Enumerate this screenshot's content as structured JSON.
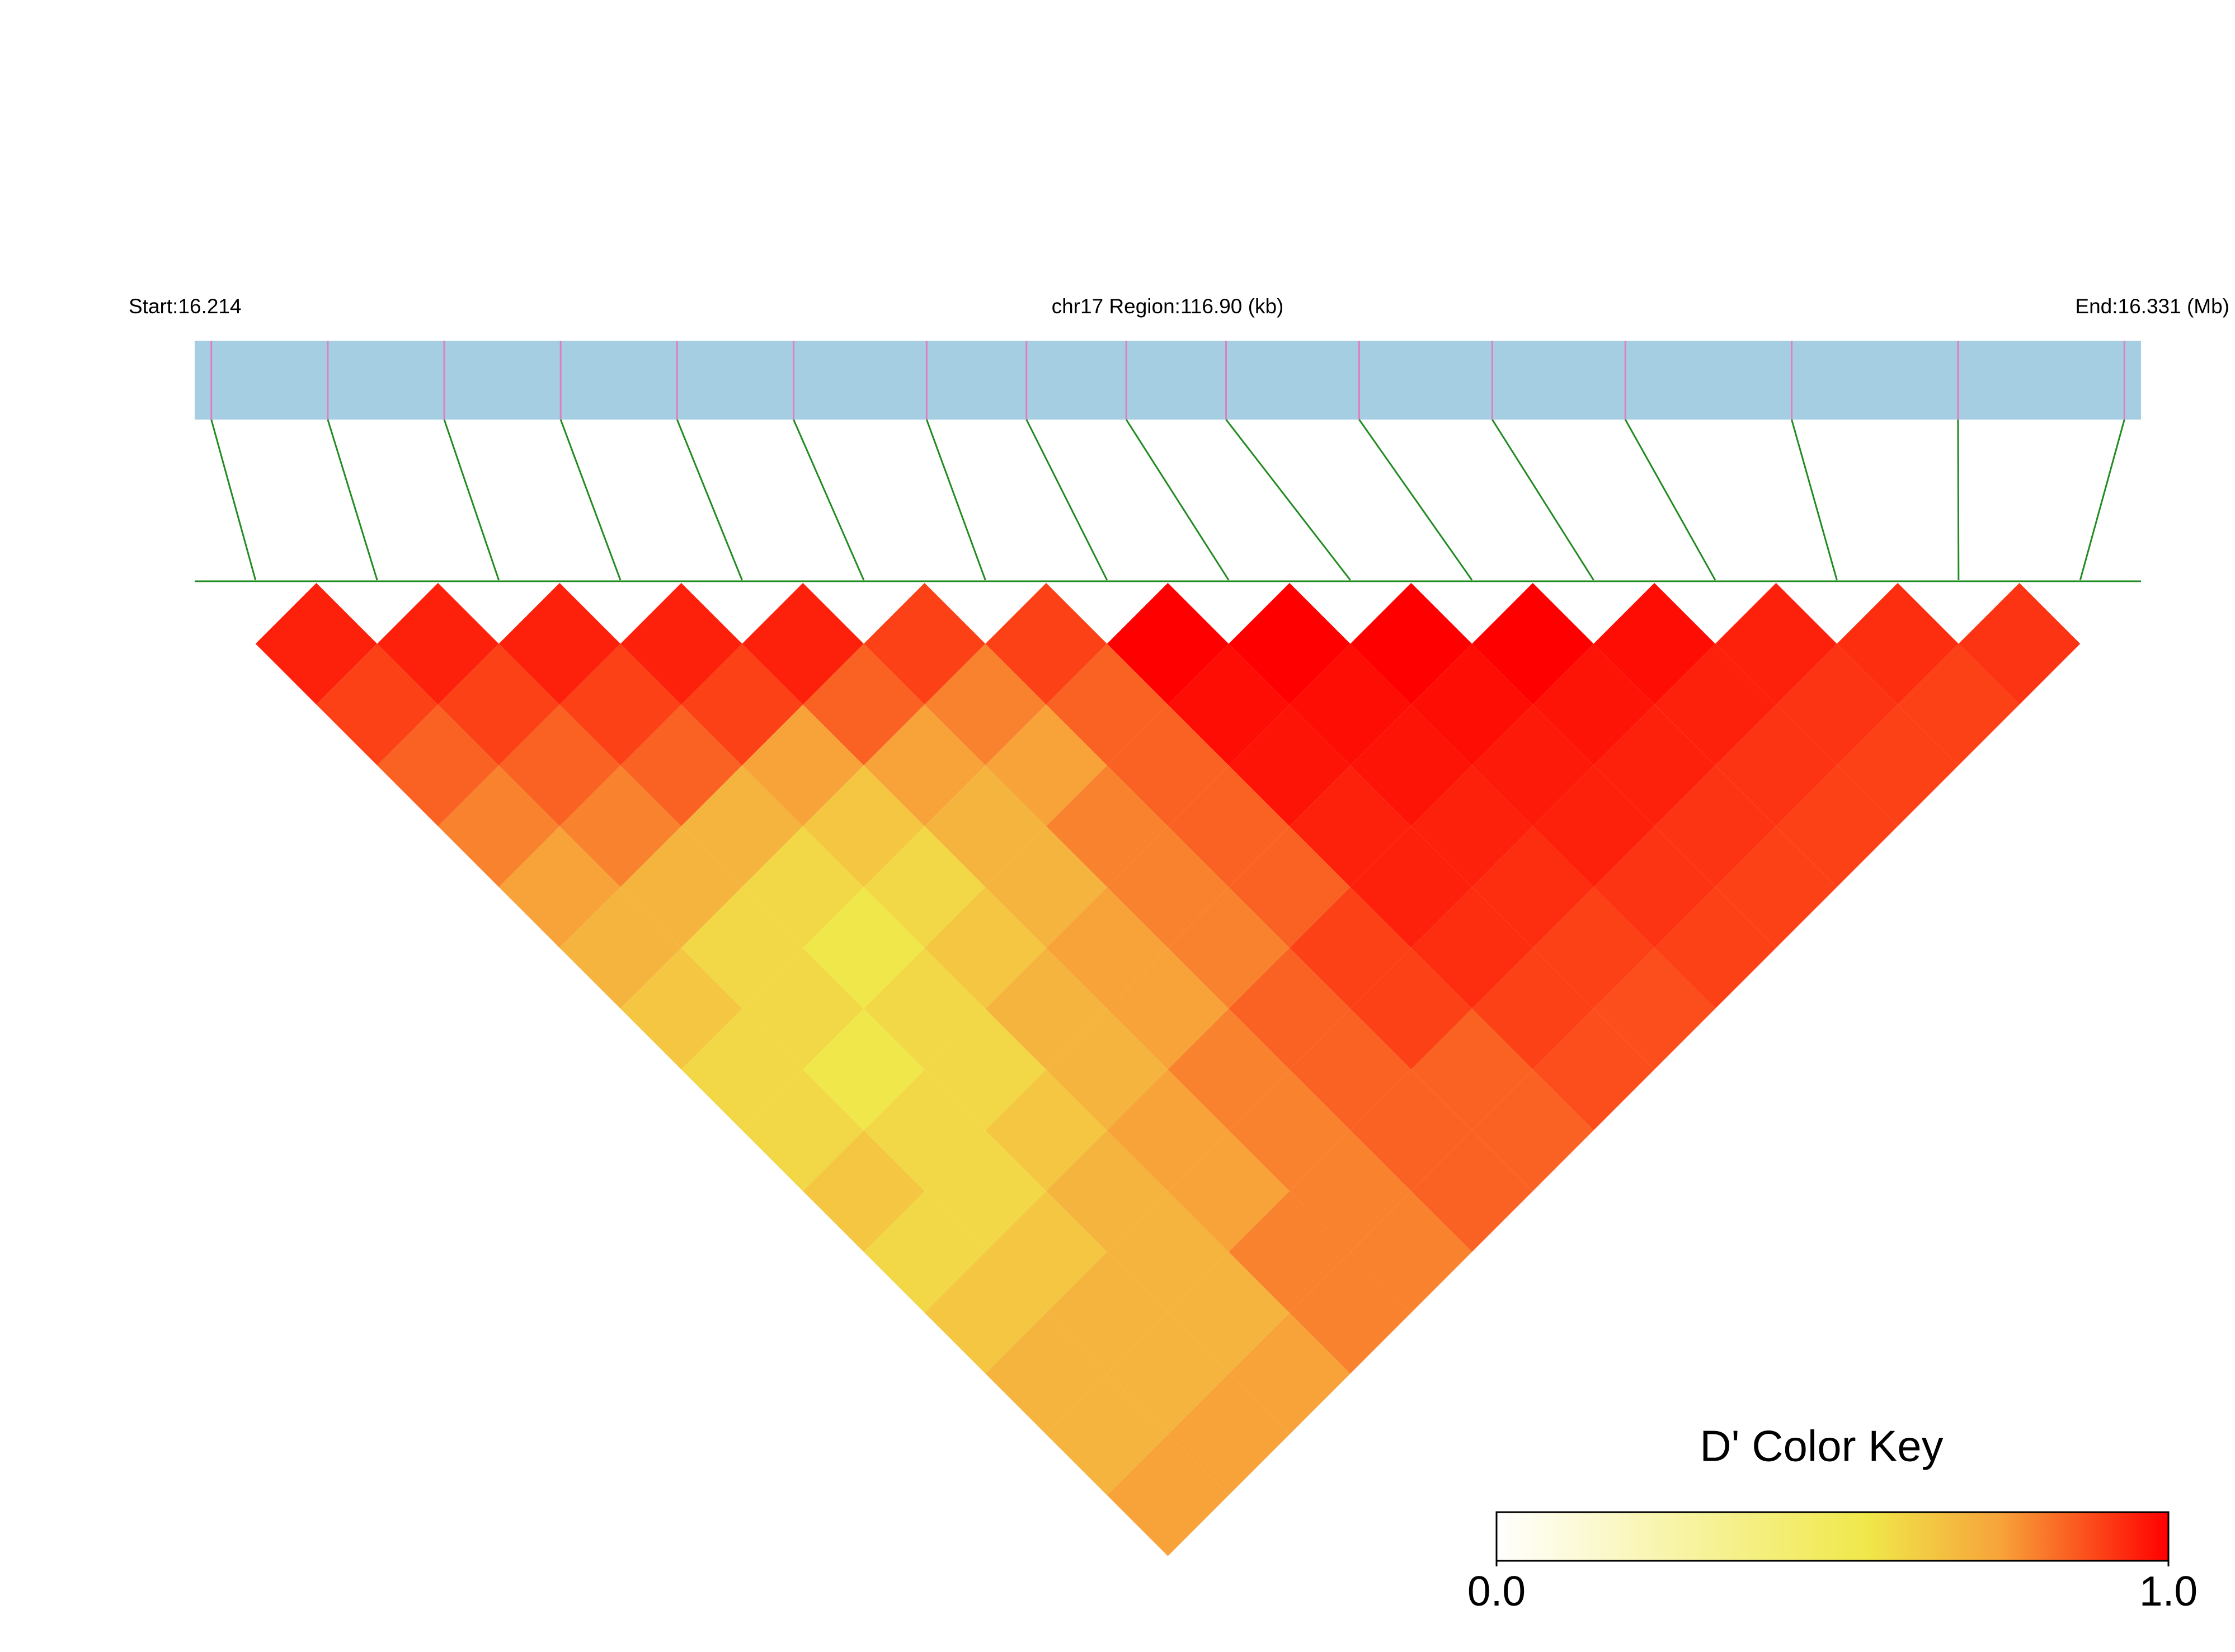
{
  "chart_data": {
    "type": "ld-heatmap",
    "start_label": "Start:16.214",
    "title": "chr17 Region:116.90 (kb)",
    "end_label": "End:16.331 (Mb)",
    "x": [
      16.215,
      16.222,
      16.229,
      16.236,
      16.243,
      16.25,
      16.258,
      16.264,
      16.27,
      16.276,
      16.284,
      16.292,
      16.3,
      16.31,
      16.32,
      16.33
    ],
    "xlim": [
      16.214,
      16.331
    ],
    "values": [
      [
        0.95,
        0.9,
        0.85,
        0.8,
        0.75,
        0.7,
        0.65,
        0.6,
        0.6,
        0.65,
        0.6,
        0.65,
        0.7,
        0.7,
        0.75
      ],
      [
        0.95,
        0.9,
        0.85,
        0.8,
        0.7,
        0.6,
        0.6,
        0.55,
        0.6,
        0.6,
        0.65,
        0.7,
        0.7,
        0.75
      ],
      [
        0.95,
        0.9,
        0.85,
        0.7,
        0.6,
        0.55,
        0.6,
        0.6,
        0.65,
        0.7,
        0.7,
        0.7,
        0.75
      ],
      [
        0.95,
        0.9,
        0.75,
        0.65,
        0.6,
        0.65,
        0.7,
        0.7,
        0.75,
        0.75,
        0.8,
        0.8
      ],
      [
        0.95,
        0.85,
        0.75,
        0.7,
        0.7,
        0.75,
        0.75,
        0.8,
        0.8,
        0.8,
        0.8
      ],
      [
        0.9,
        0.8,
        0.75,
        0.8,
        0.8,
        0.8,
        0.85,
        0.85,
        0.85,
        0.85
      ],
      [
        0.9,
        0.85,
        0.85,
        0.85,
        0.85,
        0.9,
        0.9,
        0.85,
        0.85
      ],
      [
        1,
        0.98,
        0.97,
        0.95,
        0.95,
        0.93,
        0.9,
        0.88
      ],
      [
        1,
        0.98,
        0.97,
        0.95,
        0.93,
        0.9,
        0.88
      ],
      [
        1,
        0.98,
        0.96,
        0.95,
        0.92,
        0.9
      ],
      [
        1,
        0.97,
        0.95,
        0.92,
        0.9
      ],
      [
        0.98,
        0.95,
        0.92,
        0.9
      ],
      [
        0.95,
        0.92,
        0.9
      ],
      [
        0.93,
        0.9
      ],
      [
        0.92
      ]
    ],
    "legend_title": "D' Color Key",
    "colorbar_ticks": [
      {
        "value": 0,
        "label": "0.0"
      },
      {
        "value": 1,
        "label": "1.0"
      }
    ],
    "colormap": [
      "#ffffff",
      "#f0e84a",
      "#f7a33a",
      "#ff0000"
    ],
    "colormap_stops": [
      0,
      0.55,
      0.75,
      1
    ],
    "track_color": "#a6cee3",
    "snp_color": "#e07fc0",
    "link_color": "#228b22"
  }
}
